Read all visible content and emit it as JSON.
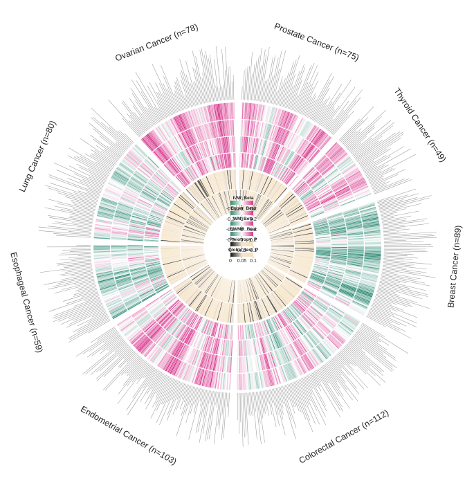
{
  "chart_data": {
    "type": "heatmap",
    "layout": "circular",
    "tracks": [
      "IVW_Beta",
      "Egger_Beta",
      "WM_Beta",
      "BWMR_Beat",
      "Pleiotropy_P",
      "Global_test_P"
    ],
    "sectors": [
      {
        "label": "Prostate Cancer (n=75)",
        "name": "Prostate Cancer",
        "n": 75
      },
      {
        "label": "Thyroid Cancer (n=49)",
        "name": "Thyroid Cancer",
        "n": 49
      },
      {
        "label": "Breast Cancer (n=89)",
        "name": "Breast Cancer",
        "n": 89
      },
      {
        "label": "Colorectal Cancer (n=112)",
        "name": "Colorectal Cancer",
        "n": 112
      },
      {
        "label": "Endometrial Cancer (n=103)",
        "name": "Endometrial Cancer",
        "n": 103
      },
      {
        "label": "Esophageal Cancer (n=59)",
        "name": "Esophageal Cancer",
        "n": 59
      },
      {
        "label": "Lung Cancer (n=80)",
        "name": "Lung Cancer",
        "n": 80
      },
      {
        "label": "Ovarian Cancer (n=78)",
        "name": "Ovarian Cancer",
        "n": 78
      }
    ],
    "legend": [
      {
        "title": "IVW_Beta",
        "ticks": [
          "-0.2",
          "0",
          "0.2"
        ],
        "colors": [
          "#2e8b74",
          "#ffffff",
          "#d6338a"
        ]
      },
      {
        "title": "Egger_Beta",
        "ticks": [
          "-0.2",
          "0",
          "0.2"
        ],
        "colors": [
          "#2e8b74",
          "#ffffff",
          "#d6338a"
        ]
      },
      {
        "title": "WM_Beta",
        "ticks": [
          "-0.2",
          "0",
          "0.2"
        ],
        "colors": [
          "#2e8b74",
          "#ffffff",
          "#d6338a"
        ]
      },
      {
        "title": "BWMR_Beat",
        "ticks": [
          "-0.2",
          "0",
          "0.2"
        ],
        "colors": [
          "#2e8b74",
          "#ffffff",
          "#d6338a"
        ]
      },
      {
        "title": "Pleiotropy_P",
        "ticks": [
          "0",
          "0.05",
          "0.1"
        ],
        "colors": [
          "#111111",
          "#f4e3d2",
          "#f6e2b6"
        ]
      },
      {
        "title": "Global_test_P",
        "ticks": [
          "0",
          "0.05",
          "0.1"
        ],
        "colors": [
          "#111111",
          "#f4e3d2",
          "#f6e2b6"
        ]
      }
    ],
    "beta_range": [
      -0.2,
      0.2
    ],
    "p_range": [
      0,
      0.1
    ]
  }
}
